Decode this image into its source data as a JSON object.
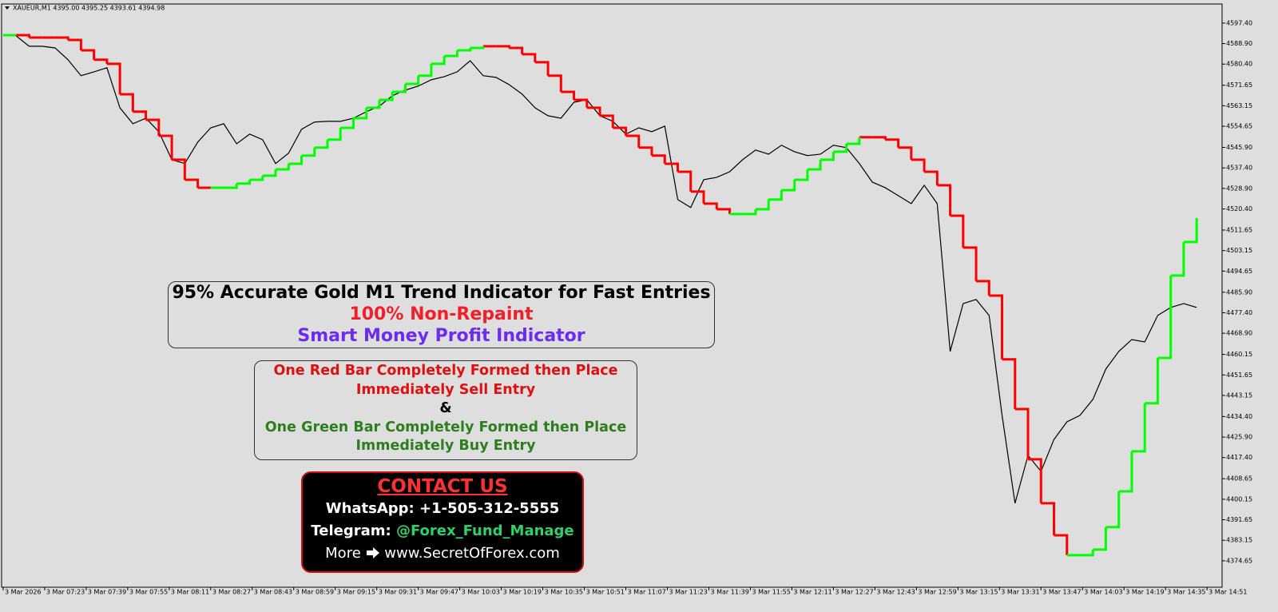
{
  "chart_data": {
    "type": "line",
    "title": "XAUEUR,M1  4395.00 4395.25 4393.61 4394.98",
    "x": [
      0,
      5,
      10,
      15,
      20,
      25,
      30,
      35,
      40,
      45,
      50,
      55,
      60,
      65,
      70,
      75,
      80,
      85,
      90,
      95,
      100,
      105,
      110,
      115,
      120,
      125,
      130,
      135,
      140,
      145,
      150,
      155,
      160,
      165,
      170,
      175,
      180,
      185,
      190,
      195,
      200,
      205,
      210,
      215,
      220,
      225,
      230,
      235,
      240,
      245,
      250,
      255,
      260,
      265,
      270,
      275,
      280,
      285,
      290,
      295,
      300,
      305,
      310,
      315,
      320,
      325,
      330,
      335,
      340,
      345,
      350,
      355,
      360,
      365,
      370,
      375,
      380,
      385,
      390,
      395,
      400,
      405,
      410,
      415,
      420,
      425,
      430,
      435,
      440,
      445,
      450,
      455,
      460
    ],
    "series": [
      {
        "color": "#000000",
        "values": [
          4592.1,
          4592.1,
          4587.8,
          4587.8,
          4587.1,
          4582.2,
          4575.6,
          4577.2,
          4578.9,
          4562.3,
          4555.7,
          4558.0,
          4552.4,
          4540.8,
          4539.2,
          4548.1,
          4554.0,
          4555.7,
          4547.4,
          4551.4,
          4549.1,
          4539.2,
          4543.5,
          4553.4,
          4556.4,
          4556.7,
          4556.7,
          4558.0,
          4560.7,
          4563.0,
          4567.3,
          4569.6,
          4571.3,
          4573.9,
          4575.2,
          4577.2,
          4581.8,
          4575.6,
          4574.9,
          4571.9,
          4568.0,
          4562.3,
          4559.0,
          4558.0,
          4564.6,
          4565.6,
          4559.0,
          4556.7,
          4551.4,
          4554.0,
          4552.4,
          4554.7,
          4524.3,
          4521.0,
          4532.5,
          4533.5,
          4535.8,
          4540.8,
          4544.8,
          4543.1,
          4546.8,
          4544.1,
          4542.5,
          4543.1,
          4546.8,
          4545.8,
          4539.2,
          4531.5,
          4529.2,
          4525.9,
          4522.6,
          4530.2,
          4522.6,
          4461.4,
          4481.2,
          4482.9,
          4476.3,
          4434.9,
          4398.5,
          4418.3,
          4411.7,
          4424.9,
          4432.2,
          4434.9,
          4441.5,
          4454.1,
          4461.4,
          4466.3,
          4465.3,
          4476.3,
          4479.6,
          4481.2,
          4479.6
        ]
      },
      {
        "color": "#ff0000",
        "values": [
          null,
          4592.4,
          4591.4,
          4591.4,
          4591.4,
          4590.4,
          4586.1,
          4582.2,
          4580.5,
          4567.9,
          4560.7,
          4557.3,
          4550.7,
          4540.8,
          4532.5,
          4529.2,
          4529.2,
          null,
          null,
          null,
          null,
          null,
          null,
          null,
          null,
          null,
          null,
          null,
          null,
          null,
          null,
          null,
          null,
          null,
          null,
          null,
          null,
          4587.8,
          4587.8,
          4587.1,
          4584.5,
          4581.2,
          4575.6,
          4568.9,
          4565.6,
          4562.3,
          4559.0,
          4554.0,
          4550.7,
          4545.8,
          4542.5,
          4539.1,
          4535.8,
          4527.6,
          4522.6,
          4520.3,
          4518.3,
          null,
          null,
          null,
          null,
          null,
          null,
          null,
          null,
          null,
          4550.1,
          4550.1,
          4549.1,
          4545.8,
          4540.8,
          4535.8,
          4530.2,
          4517.6,
          4504.4,
          4490.5,
          4484.5,
          4458.1,
          4437.5,
          4416.7,
          4398.5,
          4385.2,
          4377.0,
          null,
          null,
          null,
          null,
          null,
          null,
          null,
          null,
          null,
          null
        ]
      },
      {
        "color": "#00ff00",
        "values": [
          4592.4,
          4592.4,
          null,
          null,
          null,
          null,
          null,
          null,
          null,
          null,
          null,
          null,
          null,
          null,
          null,
          null,
          4529.2,
          4529.2,
          4530.9,
          4532.5,
          4534.2,
          4536.8,
          4539.1,
          4542.5,
          4545.8,
          4549.1,
          4554.0,
          4558.0,
          4562.3,
          4565.6,
          4568.9,
          4572.2,
          4575.6,
          4580.5,
          4583.8,
          4586.1,
          4587.1,
          4587.8,
          null,
          null,
          null,
          null,
          null,
          null,
          null,
          null,
          null,
          null,
          null,
          null,
          null,
          null,
          null,
          null,
          null,
          null,
          4518.3,
          4518.3,
          4520.3,
          4524.3,
          4528.2,
          4532.5,
          4536.8,
          4540.8,
          4544.1,
          4547.4,
          4550.1,
          null,
          null,
          null,
          null,
          null,
          null,
          null,
          null,
          null,
          null,
          null,
          null,
          null,
          null,
          null,
          4377.0,
          4377.0,
          4379.3,
          4388.6,
          4403.4,
          4420.0,
          4439.9,
          4458.7,
          4492.8,
          4506.7,
          4516.6
        ]
      }
    ],
    "xlim": [
      -0.6,
      469.8
    ],
    "xticks": [
      {
        "value": 0,
        "label": "3 Mar 2026"
      },
      {
        "value": 16,
        "label": "3 Mar 07:23"
      },
      {
        "value": 32,
        "label": "3 Mar 07:39"
      },
      {
        "value": 48,
        "label": "3 Mar 07:55"
      },
      {
        "value": 64,
        "label": "3 Mar 08:11"
      },
      {
        "value": 80,
        "label": "3 Mar 08:27"
      },
      {
        "value": 96,
        "label": "3 Mar 08:43"
      },
      {
        "value": 112,
        "label": "3 Mar 08:59"
      },
      {
        "value": 128,
        "label": "3 Mar 09:15"
      },
      {
        "value": 144,
        "label": "3 Mar 09:31"
      },
      {
        "value": 160,
        "label": "3 Mar 09:47"
      },
      {
        "value": 176,
        "label": "3 Mar 10:03"
      },
      {
        "value": 192,
        "label": "3 Mar 10:19"
      },
      {
        "value": 208,
        "label": "3 Mar 10:35"
      },
      {
        "value": 224,
        "label": "3 Mar 10:51"
      },
      {
        "value": 240,
        "label": "3 Mar 11:07"
      },
      {
        "value": 256,
        "label": "3 Mar 11:23"
      },
      {
        "value": 272,
        "label": "3 Mar 11:39"
      },
      {
        "value": 288,
        "label": "3 Mar 11:55"
      },
      {
        "value": 304,
        "label": "3 Mar 12:11"
      },
      {
        "value": 320,
        "label": "3 Mar 12:27"
      },
      {
        "value": 336,
        "label": "3 Mar 12:43"
      },
      {
        "value": 352,
        "label": "3 Mar 12:59"
      },
      {
        "value": 368,
        "label": "3 Mar 13:15"
      },
      {
        "value": 384,
        "label": "3 Mar 13:31"
      },
      {
        "value": 400,
        "label": "3 Mar 13:47"
      },
      {
        "value": 416,
        "label": "3 Mar 14:03"
      },
      {
        "value": 432,
        "label": "3 Mar 14:19"
      },
      {
        "value": 448,
        "label": "3 Mar 14:35"
      },
      {
        "value": 464,
        "label": "3 Mar 14:51"
      }
    ],
    "ylim": [
      4363.7,
      4605.3
    ],
    "yticks": [
      {
        "value": 4597.4,
        "label": "4597.40"
      },
      {
        "value": 4588.9,
        "label": "4588.90"
      },
      {
        "value": 4580.4,
        "label": "4580.40"
      },
      {
        "value": 4571.65,
        "label": "4571.65"
      },
      {
        "value": 4563.15,
        "label": "4563.15"
      },
      {
        "value": 4554.65,
        "label": "4554.65"
      },
      {
        "value": 4545.9,
        "label": "4545.90"
      },
      {
        "value": 4537.4,
        "label": "4537.40"
      },
      {
        "value": 4528.9,
        "label": "4528.90"
      },
      {
        "value": 4520.4,
        "label": "4520.40"
      },
      {
        "value": 4511.65,
        "label": "4511.65"
      },
      {
        "value": 4503.15,
        "label": "4503.15"
      },
      {
        "value": 4494.65,
        "label": "4494.65"
      },
      {
        "value": 4485.9,
        "label": "4485.90"
      },
      {
        "value": 4477.4,
        "label": "4477.40"
      },
      {
        "value": 4468.9,
        "label": "4468.90"
      },
      {
        "value": 4460.15,
        "label": "4460.15"
      },
      {
        "value": 4451.65,
        "label": "4451.65"
      },
      {
        "value": 4443.15,
        "label": "4443.15"
      },
      {
        "value": 4434.4,
        "label": "4434.40"
      },
      {
        "value": 4425.9,
        "label": "4425.90"
      },
      {
        "value": 4417.4,
        "label": "4417.40"
      },
      {
        "value": 4408.65,
        "label": "4408.65"
      },
      {
        "value": 4400.15,
        "label": "4400.15"
      },
      {
        "value": 4391.65,
        "label": "4391.65"
      },
      {
        "value": 4383.15,
        "label": "4383.15"
      },
      {
        "value": 4374.65,
        "label": "4374.65"
      }
    ]
  },
  "overlay": {
    "headline": [
      "95% Accurate Gold M1 Trend Indicator for Fast Entries",
      "100% Non-Repaint",
      "Smart Money Profit Indicator"
    ],
    "rules": [
      "One Red Bar Completely Formed then Place",
      "Immediately Sell Entry",
      "&",
      "One Green Bar Completely Formed then Place",
      "Immediately Buy Entry"
    ],
    "contact": {
      "title": "CONTACT US",
      "whatsapp": "WhatsApp: +1-505-312-5555",
      "telegram_label": "Telegram:",
      "telegram": "@Forex_Fund_Manage",
      "more": "More",
      "site": "www.SecretOfForex.com"
    }
  }
}
